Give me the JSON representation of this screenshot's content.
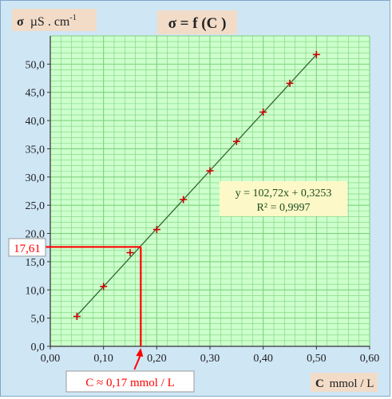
{
  "chart_data": {
    "type": "scatter",
    "title": "σ = f (C )",
    "ylabel_symbol": "σ",
    "ylabel_unit": "µS . cm",
    "ylabel_exponent": "-1",
    "xlabel_symbol": "C",
    "xlabel_unit": "mmol / L",
    "xlim": [
      0,
      0.6
    ],
    "ylim": [
      0,
      55
    ],
    "grid": true,
    "x_ticks": [
      "0,00",
      "0,10",
      "0,20",
      "0,30",
      "0,40",
      "0,50",
      "0,60"
    ],
    "y_ticks": [
      "0,0",
      "5,0",
      "10,0",
      "15,0",
      "20,0",
      "25,0",
      "30,0",
      "35,0",
      "40,0",
      "45,0",
      "50,0"
    ],
    "series": [
      {
        "points": [
          {
            "x": 0.05,
            "y": 5.3
          },
          {
            "x": 0.1,
            "y": 10.6
          },
          {
            "x": 0.15,
            "y": 16.6
          },
          {
            "x": 0.2,
            "y": 20.7
          },
          {
            "x": 0.25,
            "y": 26.0
          },
          {
            "x": 0.3,
            "y": 31.1
          },
          {
            "x": 0.35,
            "y": 36.3
          },
          {
            "x": 0.4,
            "y": 41.5
          },
          {
            "x": 0.45,
            "y": 46.6
          },
          {
            "x": 0.5,
            "y": 51.7
          }
        ]
      }
    ],
    "trendline": {
      "slope": 102.72,
      "intercept": 0.3253,
      "x_range": [
        0.05,
        0.5
      ],
      "equation_text": "y = 102,72x + 0,3253",
      "r2_text": "R² = 0,9997"
    },
    "annotation": {
      "y_value": 17.61,
      "x_value": 0.17,
      "y_label": "17,61",
      "x_label": "C ≈ 0,17 mmol / L"
    },
    "colors": {
      "background": "#cfe6f5",
      "plot_area": "#ccffcc",
      "grid": "#7fd07f",
      "marker": "#cc0000",
      "trendline": "#336633",
      "annotation": "#ff0000",
      "title_bg": "#f2dcc8",
      "equation_bg": "#fcf8c8"
    }
  }
}
